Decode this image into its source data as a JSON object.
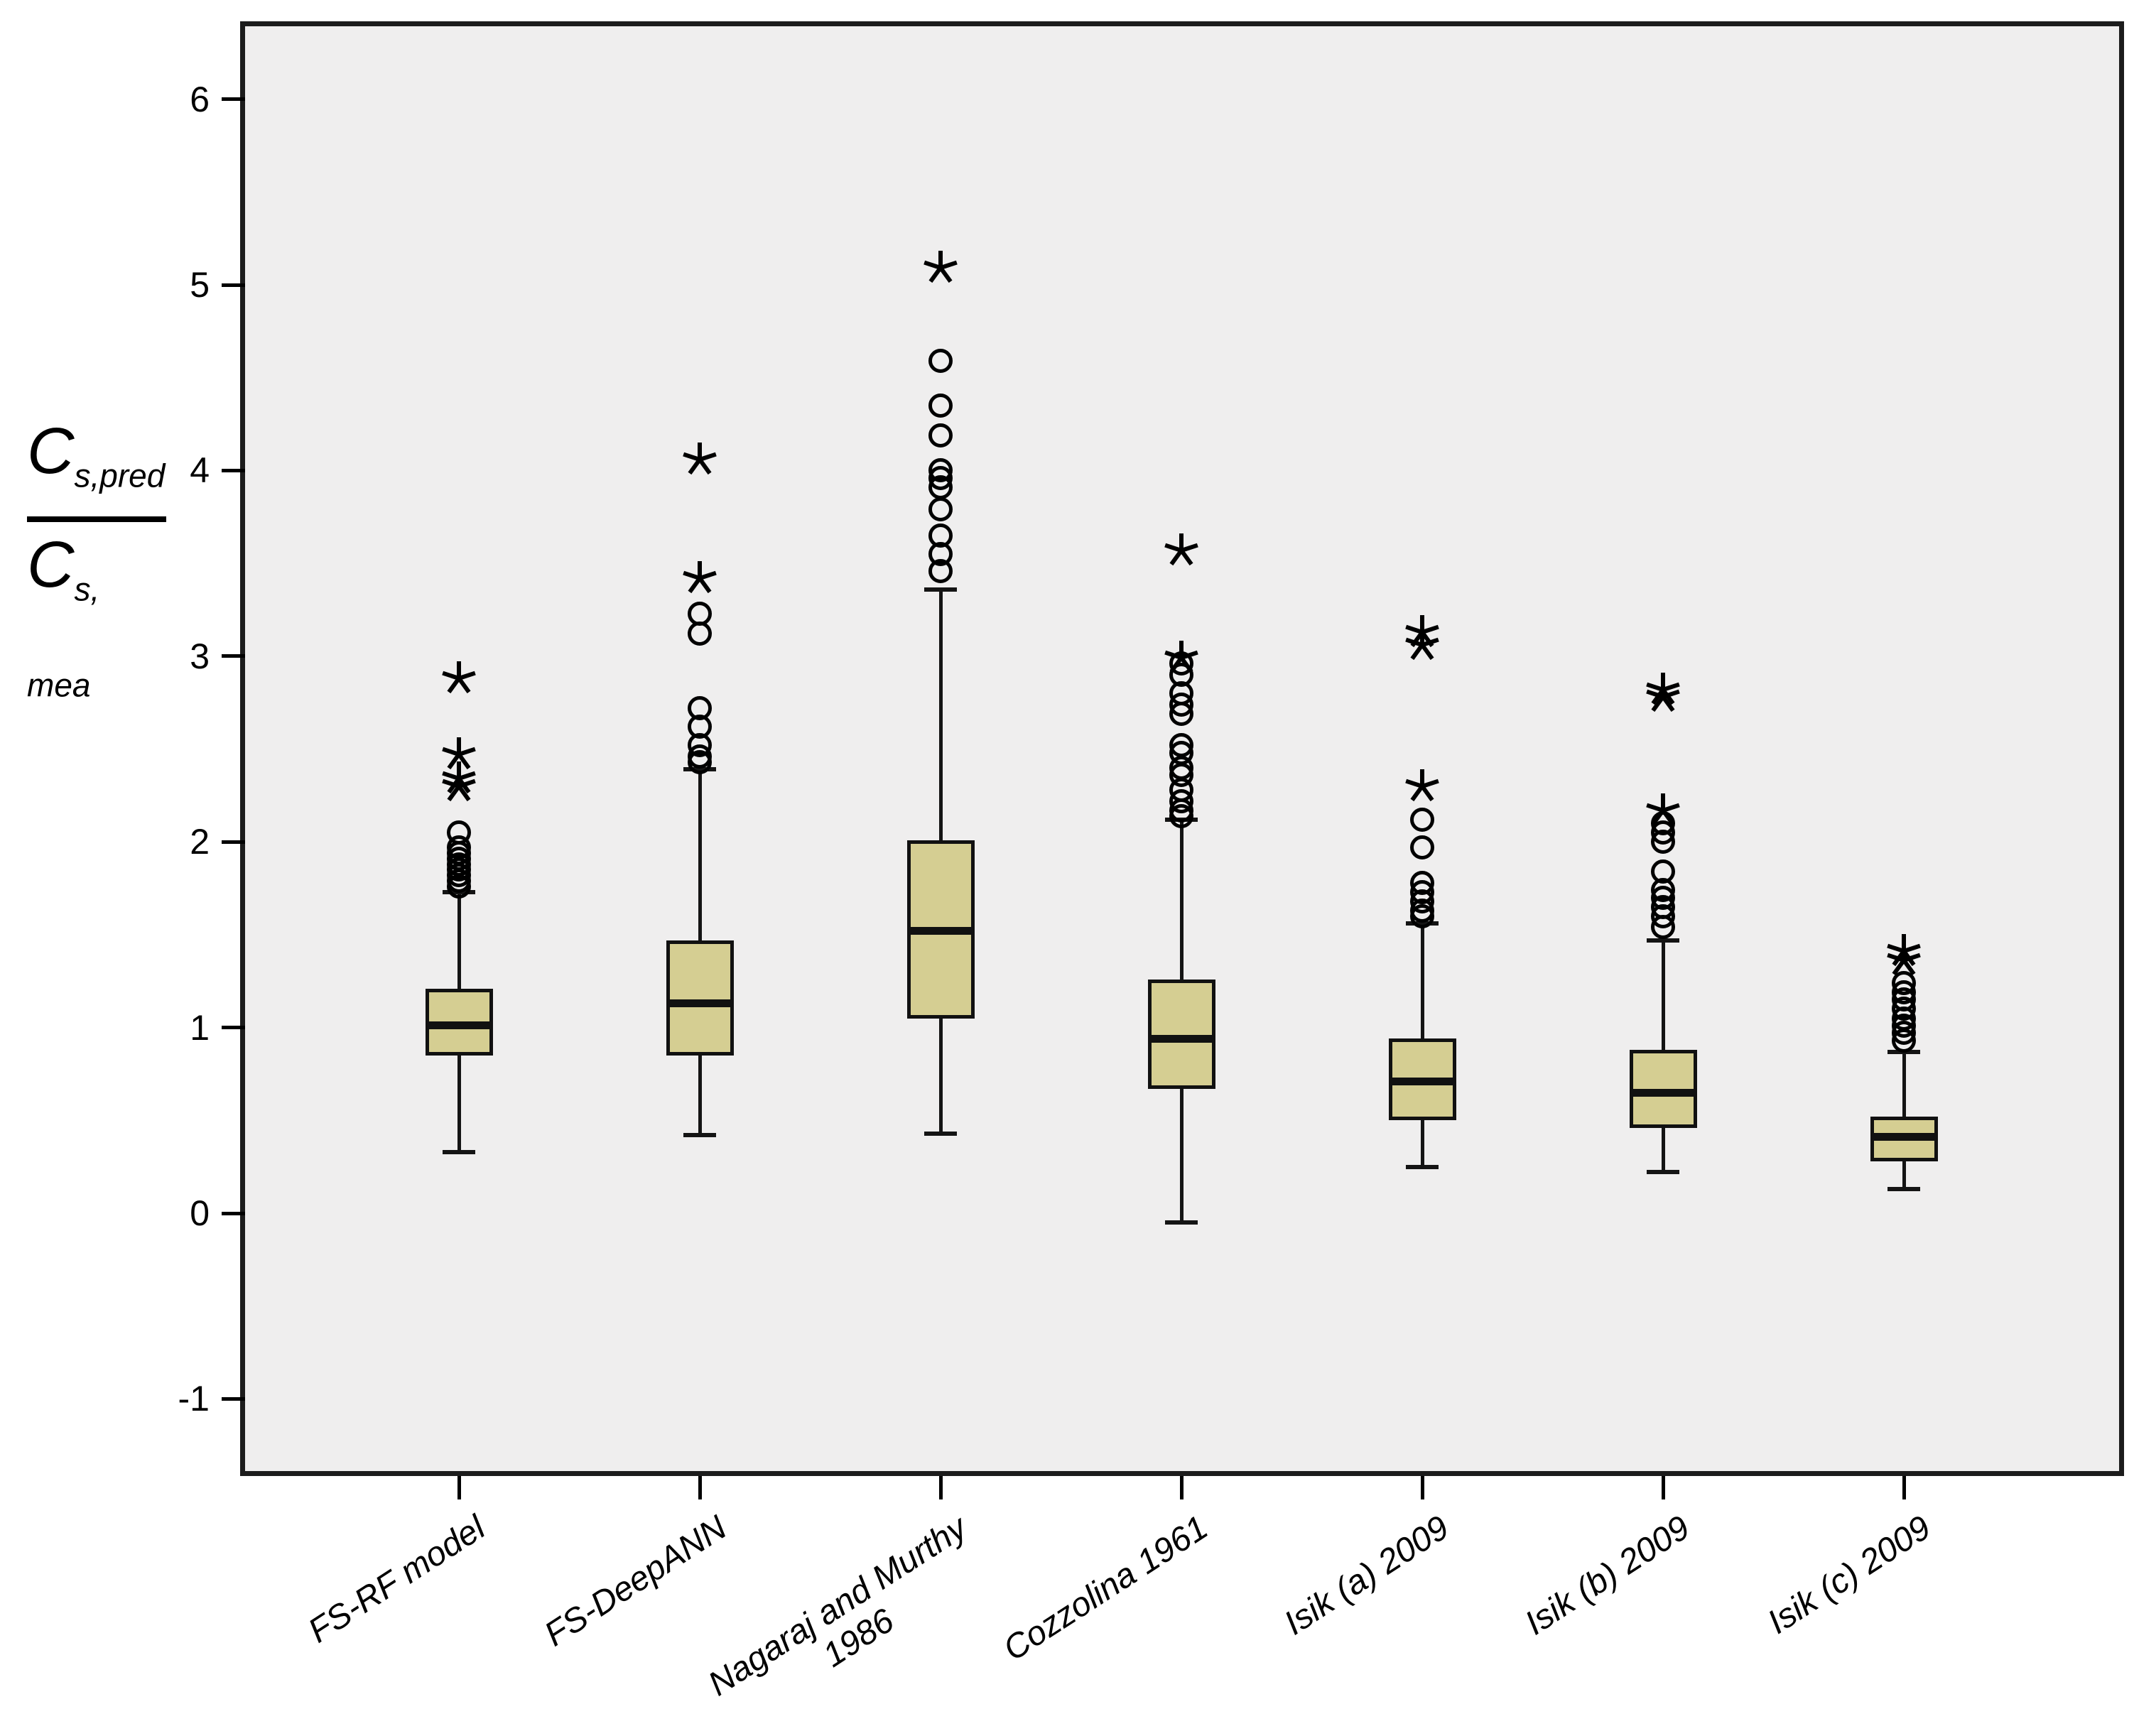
{
  "figure": {
    "plot_background": "#efeeee",
    "page_background": "#ffffff",
    "box_fill": "#d5ce92",
    "line_color": "#141414"
  },
  "chart_data": {
    "type": "boxplot",
    "title": "",
    "ylabel": "C_s,pred / C_s,mea",
    "ylabel_parts": {
      "num_base": "C",
      "num_sub": "s,pred",
      "den_base": "C",
      "den_sub": "s, mea"
    },
    "xlabel": "",
    "ylim": [
      -1.45,
      6.45
    ],
    "y_ticks": [
      -1,
      0,
      1,
      2,
      3,
      4,
      5,
      6
    ],
    "grid": false,
    "legend": "none",
    "marker_legend": {
      "circle": "outlier",
      "star": "extreme outlier"
    },
    "categories": [
      {
        "label": "FS-RF  model",
        "label2": "",
        "whisker_low": 0.33,
        "q1": 0.85,
        "median": 1.01,
        "q3": 1.21,
        "whisker_high": 1.73,
        "outliers_circles": [
          2.05,
          1.97,
          1.94,
          1.91,
          1.88,
          1.85,
          1.82,
          1.79,
          1.76
        ],
        "outliers_stars": [
          2.88,
          2.47,
          2.34,
          2.3
        ]
      },
      {
        "label": "FS-DeepANN",
        "label2": "",
        "whisker_low": 0.42,
        "q1": 0.85,
        "median": 1.13,
        "q3": 1.47,
        "whisker_high": 2.39,
        "outliers_circles": [
          3.23,
          3.12,
          2.72,
          2.62,
          2.52,
          2.46,
          2.43
        ],
        "outliers_stars": [
          4.06,
          3.42
        ]
      },
      {
        "label": "Nagaraj and Murthy",
        "label2": "1986",
        "whisker_low": 0.43,
        "q1": 1.05,
        "median": 1.52,
        "q3": 2.01,
        "whisker_high": 3.36,
        "outliers_circles": [
          4.59,
          4.35,
          4.19,
          4.0,
          3.96,
          3.91,
          3.79,
          3.65,
          3.55,
          3.46
        ],
        "outliers_stars": [
          5.09
        ]
      },
      {
        "label": "Cozzolina 1961",
        "label2": "",
        "whisker_low": -0.05,
        "q1": 0.67,
        "median": 0.94,
        "q3": 1.26,
        "whisker_high": 2.12,
        "outliers_circles": [
          2.96,
          2.9,
          2.8,
          2.74,
          2.69,
          2.52,
          2.48,
          2.4,
          2.36,
          2.28,
          2.22,
          2.17,
          2.14
        ],
        "outliers_stars": [
          3.57,
          2.99
        ]
      },
      {
        "label": "Isik (a) 2009",
        "label2": "",
        "whisker_low": 0.25,
        "q1": 0.5,
        "median": 0.71,
        "q3": 0.94,
        "whisker_high": 1.56,
        "outliers_circles": [
          2.12,
          1.97,
          1.78,
          1.73,
          1.68,
          1.63,
          1.6
        ],
        "outliers_stars": [
          3.13,
          3.06,
          2.3
        ]
      },
      {
        "label": "Isik (b) 2009",
        "label2": "",
        "whisker_low": 0.22,
        "q1": 0.46,
        "median": 0.65,
        "q3": 0.88,
        "whisker_high": 1.47,
        "outliers_circles": [
          2.1,
          2.05,
          2.0,
          1.84,
          1.74,
          1.7,
          1.65,
          1.6,
          1.54
        ],
        "outliers_stars": [
          2.82,
          2.78,
          2.17
        ]
      },
      {
        "label": "Isik (c) 2009",
        "label2": "",
        "whisker_low": 0.13,
        "q1": 0.28,
        "median": 0.41,
        "q3": 0.52,
        "whisker_high": 0.87,
        "outliers_circles": [
          1.24,
          1.19,
          1.15,
          1.1,
          1.05,
          1.01,
          0.97,
          0.93
        ],
        "outliers_stars": [
          1.41,
          1.36
        ]
      }
    ]
  }
}
